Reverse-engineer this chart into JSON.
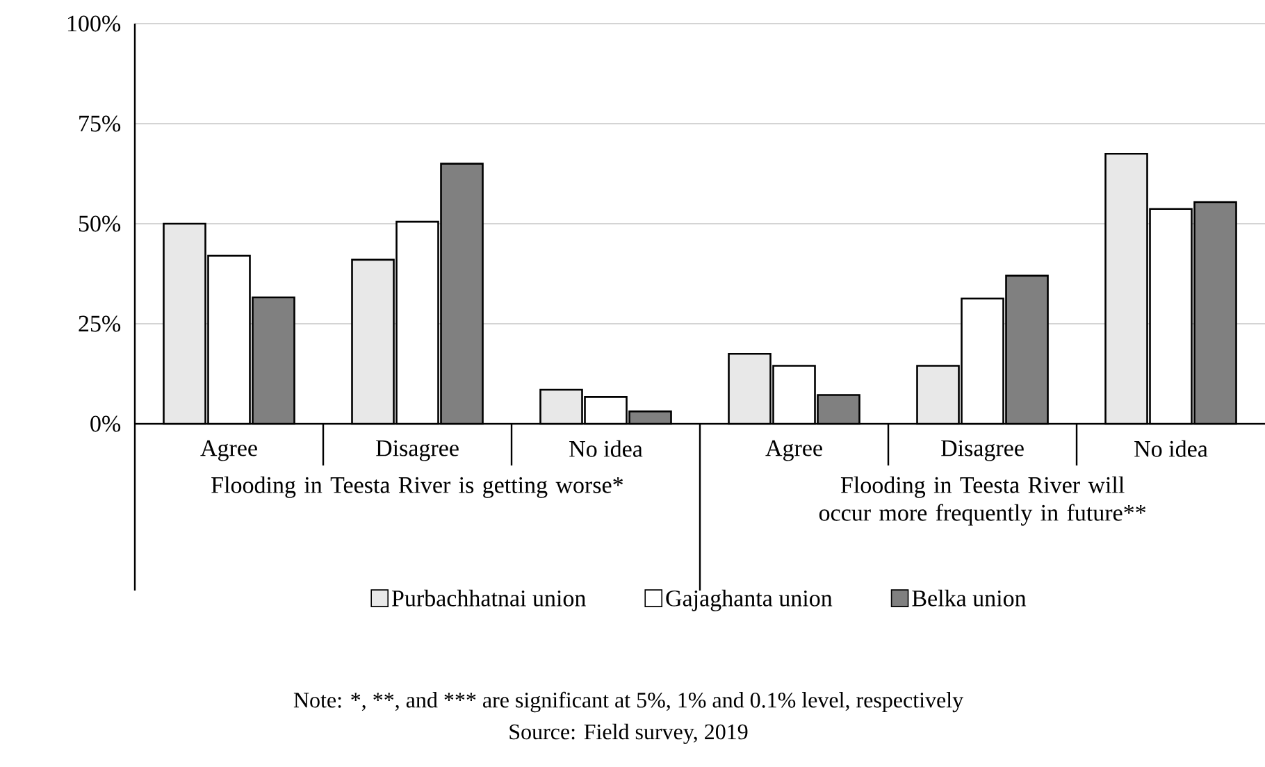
{
  "chart_data": {
    "type": "bar",
    "categories": [
      "Agree",
      "Disagree",
      "No idea",
      "Agree",
      "Disagree",
      "No idea"
    ],
    "series": [
      {
        "name": "Purbachhatnai union",
        "color": "#e8e8e8",
        "values": [
          50,
          41,
          8.5,
          17.5,
          14.5,
          67.5
        ]
      },
      {
        "name": "Gajaghanta union",
        "color": "#ffffff",
        "values": [
          42,
          50.5,
          6.7,
          14.5,
          31.3,
          53.7
        ]
      },
      {
        "name": "Belka union",
        "color": "#808080",
        "values": [
          31.6,
          65,
          3.1,
          7.2,
          37,
          55.4
        ]
      }
    ],
    "ylim": [
      0,
      100
    ],
    "yticks": [
      {
        "value": 0,
        "label": "0%"
      },
      {
        "value": 25,
        "label": "25%"
      },
      {
        "value": 50,
        "label": "50%"
      },
      {
        "value": 75,
        "label": "75%"
      },
      {
        "value": 100,
        "label": "100%"
      }
    ],
    "grid": "y",
    "legend": "bottom",
    "annotations": [
      "Flooding in Teesta River is getting worse*",
      "Flooding in Teesta River will occur more frequently in future**",
      "Note: *,",
      "**,",
      "and ***",
      "are significant at 5%, 1% and 0.1% level, respectively",
      "Source: Field survey, 2019"
    ]
  }
}
